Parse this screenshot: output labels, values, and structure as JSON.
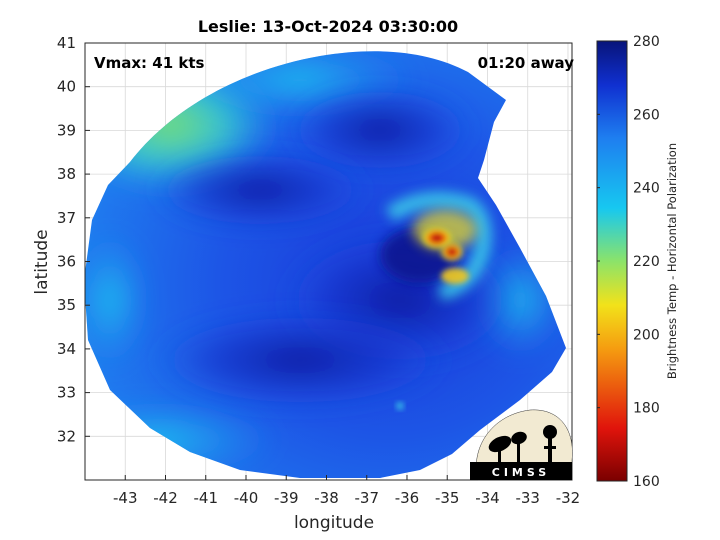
{
  "figure": {
    "title": "Leslie: 13-Oct-2024 03:30:00",
    "vmax_label": "Vmax: 41 kts",
    "time_label": "01:20 away",
    "logo_text": "CIMSS"
  },
  "chart_data": {
    "type": "heatmap",
    "title": "Leslie: 13-Oct-2024 03:30:00",
    "xlabel": "longitude",
    "ylabel": "latitude",
    "xlim": [
      -44,
      -31.9
    ],
    "ylim": [
      31,
      41
    ],
    "xticks": [
      -43,
      -42,
      -41,
      -40,
      -39,
      -38,
      -37,
      -36,
      -35,
      -34,
      -33,
      -32
    ],
    "yticks": [
      32,
      33,
      34,
      35,
      36,
      37,
      38,
      39,
      40,
      41
    ],
    "grid": true,
    "colorbar": {
      "label": "Brightness Temp - Horizontal Polarization",
      "min": 160,
      "max": 280,
      "ticks": [
        160,
        180,
        200,
        220,
        240,
        260,
        280
      ],
      "colormap": "jet"
    },
    "storm_center": {
      "lon": -35.2,
      "lat": 36.2
    },
    "cold_core_min_temp": 165,
    "annotations": [
      "Vmax: 41 kts",
      "01:20 away"
    ]
  },
  "colors": {
    "dark_blue": "#0a1a9c",
    "mid_blue": "#1e5ee8",
    "cyan": "#17c8f0",
    "green": "#6fe06a",
    "yellow": "#f2e21a",
    "red": "#e0140c",
    "dark_red": "#7a0000"
  }
}
